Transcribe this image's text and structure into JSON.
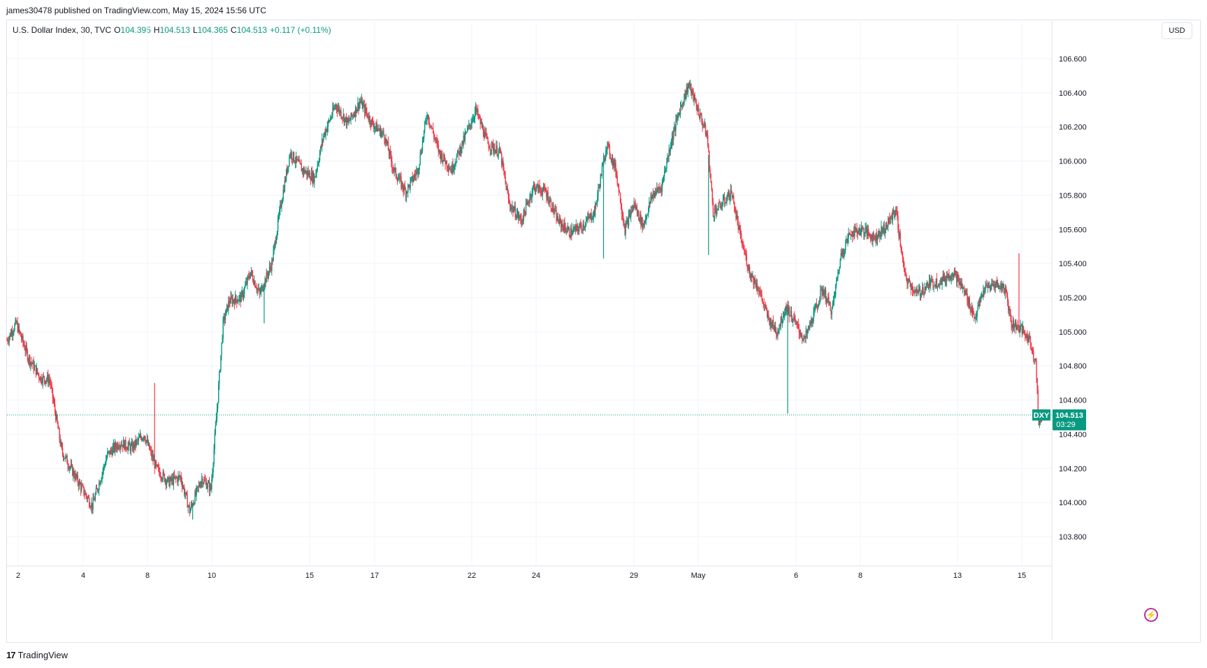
{
  "header": {
    "published_line": "james30478 published on TradingView.com, May 15, 2024 15:56 UTC"
  },
  "legend": {
    "symbol_line": "U.S. Dollar Index, 30, TVC",
    "o_label": "O",
    "o_value": "104.395",
    "h_label": "H",
    "h_value": "104.513",
    "l_label": "L",
    "l_value": "104.365",
    "c_label": "C",
    "c_value": "104.513",
    "change": "+0.117 (+0.11%)"
  },
  "currency_button": "USD",
  "footer": {
    "brand_text": "TradingView",
    "logo_text": "17"
  },
  "colors": {
    "up": "#089981",
    "down": "#f23645",
    "grid": "#f0f3fa",
    "price_tag": "#089981"
  },
  "icons": {
    "alert_icon": "lightning-bolt"
  },
  "chart_data": {
    "type": "candlestick",
    "symbol": "DXY",
    "interval": "30",
    "ylim": [
      103.7,
      106.7
    ],
    "y_ticks": [
      "106.600",
      "106.400",
      "106.200",
      "106.000",
      "105.800",
      "105.600",
      "105.400",
      "105.200",
      "105.000",
      "104.800",
      "104.600",
      "104.400",
      "104.200",
      "104.000",
      "103.800"
    ],
    "x_ticks": [
      "2",
      "4",
      "8",
      "10",
      "15",
      "17",
      "22",
      "24",
      "29",
      "May",
      "6",
      "8",
      "13",
      "15"
    ],
    "last_price": "104.513",
    "countdown": "03:29",
    "symbol_tag": "DXY",
    "trend": [
      {
        "t": 0,
        "p": 104.95
      },
      {
        "t": 3,
        "p": 105.05
      },
      {
        "t": 7,
        "p": 104.85
      },
      {
        "t": 11,
        "p": 104.73
      },
      {
        "t": 14,
        "p": 104.72
      },
      {
        "t": 18,
        "p": 104.3
      },
      {
        "t": 24,
        "p": 104.1
      },
      {
        "t": 28,
        "p": 103.98
      },
      {
        "t": 33,
        "p": 104.28
      },
      {
        "t": 37,
        "p": 104.35
      },
      {
        "t": 41,
        "p": 104.32
      },
      {
        "t": 45,
        "p": 104.4
      },
      {
        "t": 49,
        "p": 104.2
      },
      {
        "t": 53,
        "p": 104.12
      },
      {
        "t": 57,
        "p": 104.15
      },
      {
        "t": 60,
        "p": 103.95
      },
      {
        "t": 64,
        "p": 104.14
      },
      {
        "t": 67,
        "p": 104.08
      },
      {
        "t": 69,
        "p": 104.55
      },
      {
        "t": 71,
        "p": 105.05
      },
      {
        "t": 73,
        "p": 105.18
      },
      {
        "t": 77,
        "p": 105.2
      },
      {
        "t": 80,
        "p": 105.35
      },
      {
        "t": 83,
        "p": 105.22
      },
      {
        "t": 87,
        "p": 105.4
      },
      {
        "t": 90,
        "p": 105.75
      },
      {
        "t": 93,
        "p": 106.05
      },
      {
        "t": 97,
        "p": 105.95
      },
      {
        "t": 101,
        "p": 105.9
      },
      {
        "t": 104,
        "p": 106.15
      },
      {
        "t": 108,
        "p": 106.33
      },
      {
        "t": 112,
        "p": 106.22
      },
      {
        "t": 116,
        "p": 106.35
      },
      {
        "t": 120,
        "p": 106.22
      },
      {
        "t": 124,
        "p": 106.15
      },
      {
        "t": 127,
        "p": 105.95
      },
      {
        "t": 131,
        "p": 105.82
      },
      {
        "t": 135,
        "p": 105.95
      },
      {
        "t": 138,
        "p": 106.28
      },
      {
        "t": 142,
        "p": 106.05
      },
      {
        "t": 146,
        "p": 105.95
      },
      {
        "t": 150,
        "p": 106.12
      },
      {
        "t": 154,
        "p": 106.3
      },
      {
        "t": 158,
        "p": 106.1
      },
      {
        "t": 162,
        "p": 106.05
      },
      {
        "t": 165,
        "p": 105.75
      },
      {
        "t": 169,
        "p": 105.65
      },
      {
        "t": 173,
        "p": 105.85
      },
      {
        "t": 177,
        "p": 105.82
      },
      {
        "t": 181,
        "p": 105.65
      },
      {
        "t": 185,
        "p": 105.58
      },
      {
        "t": 189,
        "p": 105.62
      },
      {
        "t": 193,
        "p": 105.7
      },
      {
        "t": 197,
        "p": 106.1
      },
      {
        "t": 200,
        "p": 105.95
      },
      {
        "t": 203,
        "p": 105.6
      },
      {
        "t": 206,
        "p": 105.75
      },
      {
        "t": 209,
        "p": 105.62
      },
      {
        "t": 212,
        "p": 105.8
      },
      {
        "t": 215,
        "p": 105.85
      },
      {
        "t": 218,
        "p": 106.1
      },
      {
        "t": 221,
        "p": 106.3
      },
      {
        "t": 224,
        "p": 106.45
      },
      {
        "t": 227,
        "p": 106.3
      },
      {
        "t": 230,
        "p": 106.15
      },
      {
        "t": 232,
        "p": 105.7
      },
      {
        "t": 235,
        "p": 105.75
      },
      {
        "t": 238,
        "p": 105.82
      },
      {
        "t": 241,
        "p": 105.55
      },
      {
        "t": 244,
        "p": 105.35
      },
      {
        "t": 247,
        "p": 105.25
      },
      {
        "t": 250,
        "p": 105.08
      },
      {
        "t": 253,
        "p": 105.0
      },
      {
        "t": 256,
        "p": 105.15
      },
      {
        "t": 259,
        "p": 105.05
      },
      {
        "t": 262,
        "p": 104.95
      },
      {
        "t": 265,
        "p": 105.1
      },
      {
        "t": 268,
        "p": 105.25
      },
      {
        "t": 271,
        "p": 105.12
      },
      {
        "t": 274,
        "p": 105.45
      },
      {
        "t": 277,
        "p": 105.58
      },
      {
        "t": 281,
        "p": 105.6
      },
      {
        "t": 285,
        "p": 105.55
      },
      {
        "t": 289,
        "p": 105.62
      },
      {
        "t": 292,
        "p": 105.72
      },
      {
        "t": 295,
        "p": 105.32
      },
      {
        "t": 299,
        "p": 105.22
      },
      {
        "t": 303,
        "p": 105.28
      },
      {
        "t": 307,
        "p": 105.3
      },
      {
        "t": 311,
        "p": 105.35
      },
      {
        "t": 315,
        "p": 105.22
      },
      {
        "t": 318,
        "p": 105.08
      },
      {
        "t": 321,
        "p": 105.25
      },
      {
        "t": 325,
        "p": 105.28
      },
      {
        "t": 328,
        "p": 105.25
      },
      {
        "t": 330,
        "p": 105.05
      },
      {
        "t": 333,
        "p": 105.02
      },
      {
        "t": 336,
        "p": 104.95
      },
      {
        "t": 338,
        "p": 104.82
      },
      {
        "t": 339,
        "p": 104.45
      },
      {
        "t": 340,
        "p": 104.51
      }
    ],
    "spikes": [
      {
        "t": 48.5,
        "p": 104.7
      },
      {
        "t": 84.5,
        "p": 105.05
      },
      {
        "t": 230.5,
        "p": 105.45
      },
      {
        "t": 256.5,
        "p": 104.52
      },
      {
        "t": 332.5,
        "p": 105.46
      },
      {
        "t": 196,
        "p": 105.43
      },
      {
        "t": 61,
        "p": 103.9
      }
    ]
  }
}
